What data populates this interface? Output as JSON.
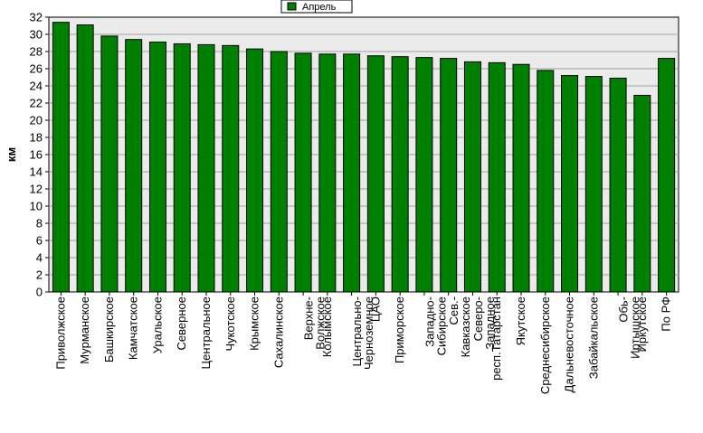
{
  "chart_data": {
    "type": "bar",
    "ylabel": "км",
    "ylim": [
      0,
      32
    ],
    "ytick_step": 2,
    "grid": true,
    "legend_position": "top-center",
    "series": [
      {
        "name": "Апрель",
        "color": "#008000",
        "values": [
          31.4,
          31.1,
          29.8,
          29.4,
          29.1,
          28.9,
          28.8,
          28.7,
          28.3,
          28.0,
          27.8,
          27.7,
          27.7,
          27.5,
          27.4,
          27.3,
          27.2,
          26.8,
          26.7,
          26.5,
          25.8,
          25.2,
          25.1,
          24.9,
          22.9,
          27.2
        ]
      }
    ],
    "categories": [
      [
        "Приволжское"
      ],
      [
        "Мурманское"
      ],
      [
        "Башкирское"
      ],
      [
        "Камчатское"
      ],
      [
        "Уральское"
      ],
      [
        "Северное"
      ],
      [
        "Центральное"
      ],
      [
        "Чукотское"
      ],
      [
        "Крымское"
      ],
      [
        "Сахалинское"
      ],
      [
        "Верхне-",
        "Волжское"
      ],
      [
        "Колымское"
      ],
      [
        "Центрально-",
        "Черноземное"
      ],
      [
        "ЦАО"
      ],
      [
        "Приморское"
      ],
      [
        "Западно-",
        "Сибирское"
      ],
      [
        "Сев.-",
        "Кавказское"
      ],
      [
        "Северо-",
        "Западное"
      ],
      [
        "респ.Татарстан"
      ],
      [
        "Якутское"
      ],
      [
        "Среднесибирское"
      ],
      [
        "Дальневосточное"
      ],
      [
        "Забайкальское"
      ],
      [
        "Обь-",
        "Иртышское"
      ],
      [
        "Иркутское"
      ],
      [
        "По РФ"
      ]
    ],
    "colors": {
      "plot_background": "#ebebeb",
      "gridline": "#a0a0a0",
      "bar": "#008000",
      "bar_border": "#000000"
    }
  }
}
